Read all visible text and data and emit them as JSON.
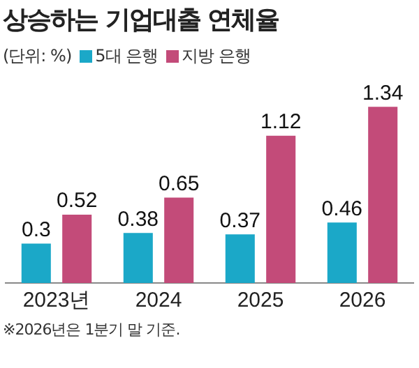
{
  "chart_data": {
    "type": "bar",
    "title": "상승하는 기업대출 연체율",
    "subtitle": "(단위: %)",
    "categories": [
      "2023년",
      "2024",
      "2025",
      "2026"
    ],
    "series": [
      {
        "name": "5대 은행",
        "color": "#1ba8c8",
        "values": [
          0.3,
          0.38,
          0.37,
          0.46
        ]
      },
      {
        "name": "지방 은행",
        "color": "#c34b79",
        "values": [
          0.52,
          0.65,
          1.12,
          1.34
        ]
      }
    ],
    "data_labels": true,
    "grid": false,
    "legend": "top left",
    "annotations": [
      "※2026년은 1분기 말 기준."
    ]
  }
}
